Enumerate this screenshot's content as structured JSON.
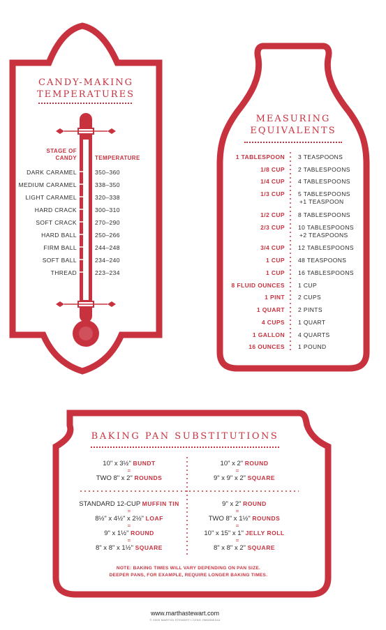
{
  "colors": {
    "accent": "#c8323f",
    "text": "#2a2a2a",
    "background": "#ffffff"
  },
  "candy": {
    "title_line1": "CANDY-MAKING",
    "title_line2": "TEMPERATURES",
    "header_stage_line1": "STAGE OF",
    "header_stage_line2": "CANDY",
    "header_temp": "TEMPERATURE",
    "rows": [
      {
        "stage": "DARK CARAMEL",
        "temp": "350–360"
      },
      {
        "stage": "MEDIUM CARAMEL",
        "temp": "338–350"
      },
      {
        "stage": "LIGHT CARAMEL",
        "temp": "320–338"
      },
      {
        "stage": "HARD CRACK",
        "temp": "300–310"
      },
      {
        "stage": "SOFT CRACK",
        "temp": "270–290"
      },
      {
        "stage": "HARD BALL",
        "temp": "250–266"
      },
      {
        "stage": "FIRM BALL",
        "temp": "244–248"
      },
      {
        "stage": "SOFT BALL",
        "temp": "234–240"
      },
      {
        "stage": "THREAD",
        "temp": "223–234"
      }
    ]
  },
  "measuring": {
    "title_line1": "MEASURING",
    "title_line2": "EQUIVALENTS",
    "rows": [
      {
        "left": "1 TABLESPOON",
        "right": "3 TEASPOONS",
        "right2": ""
      },
      {
        "left": "1/8 CUP",
        "right": "2 TABLESPOONS",
        "right2": ""
      },
      {
        "left": "1/4 CUP",
        "right": "4 TABLESPOONS",
        "right2": ""
      },
      {
        "left": "1/3 CUP",
        "right": "5 TABLESPOONS",
        "right2": "+1 TEASPOON"
      },
      {
        "left": "1/2 CUP",
        "right": "8 TABLESPOONS",
        "right2": ""
      },
      {
        "left": "2/3 CUP",
        "right": "10 TABLESPOONS",
        "right2": "+2 TEASPOONS"
      },
      {
        "left": "3/4 CUP",
        "right": "12 TABLESPOONS",
        "right2": ""
      },
      {
        "left": "1 CUP",
        "right": "48 TEASPOONS",
        "right2": ""
      },
      {
        "left": "1 CUP",
        "right": "16 TABLESPOONS",
        "right2": ""
      },
      {
        "left": "8 FLUID OUNCES",
        "right": "1 CUP",
        "right2": ""
      },
      {
        "left": "1 PINT",
        "right": "2 CUPS",
        "right2": ""
      },
      {
        "left": "1 QUART",
        "right": "2 PINTS",
        "right2": ""
      },
      {
        "left": "4 CUPS",
        "right": "1 QUART",
        "right2": ""
      },
      {
        "left": "1 GALLON",
        "right": "4 QUARTS",
        "right2": ""
      },
      {
        "left": "16 OUNCES",
        "right": "1 POUND",
        "right2": ""
      }
    ]
  },
  "baking": {
    "title": "BAKING PAN SUBSTITUTIONS",
    "blocks": {
      "tl": {
        "top_size": "10\" x 3½\"",
        "top_pan": "BUNDT",
        "eq": "=",
        "bottom_size": "TWO 8\" x 2\"",
        "bottom_pan": "ROUNDS"
      },
      "tr": {
        "top_size": "10\" x 2\"",
        "top_pan": "ROUND",
        "eq": "=",
        "bottom_size": "9\" x 9\" x 2\"",
        "bottom_pan": "SQUARE"
      },
      "bl": {
        "l1_size": "STANDARD 12-CUP",
        "l1_pan": "MUFFIN TIN",
        "l2_size": "8½\" x 4½\" x 2½\"",
        "l2_pan": "LOAF",
        "l3_size": "9\" x 1½\"",
        "l3_pan": "ROUND",
        "l4_size": "8\" x 8\" x 1½\"",
        "l4_pan": "SQUARE",
        "eq": "="
      },
      "br": {
        "l1_size": "9\" x 2\"",
        "l1_pan": "ROUND",
        "l2_size": "TWO 8\" x 1½\"",
        "l2_pan": "ROUNDS",
        "l3_size": "10\" x 15\" x 1\"",
        "l3_pan": "JELLY ROLL",
        "l4_size": "8\" x 8\" x 2\"",
        "l4_pan": "SQUARE",
        "eq": "="
      }
    },
    "note_line1": "NOTE: BAKING TIMES WILL VARY DEPENDING ON PAN SIZE.",
    "note_line2": "DEEPER PANS, FOR EXAMPLE, REQUIRE LONGER BAKING TIMES."
  },
  "footer": {
    "site": "www.marthastewart.com",
    "copyright": "© 2005 MARTHA STEWART LIVING OMNIMEDIA"
  }
}
